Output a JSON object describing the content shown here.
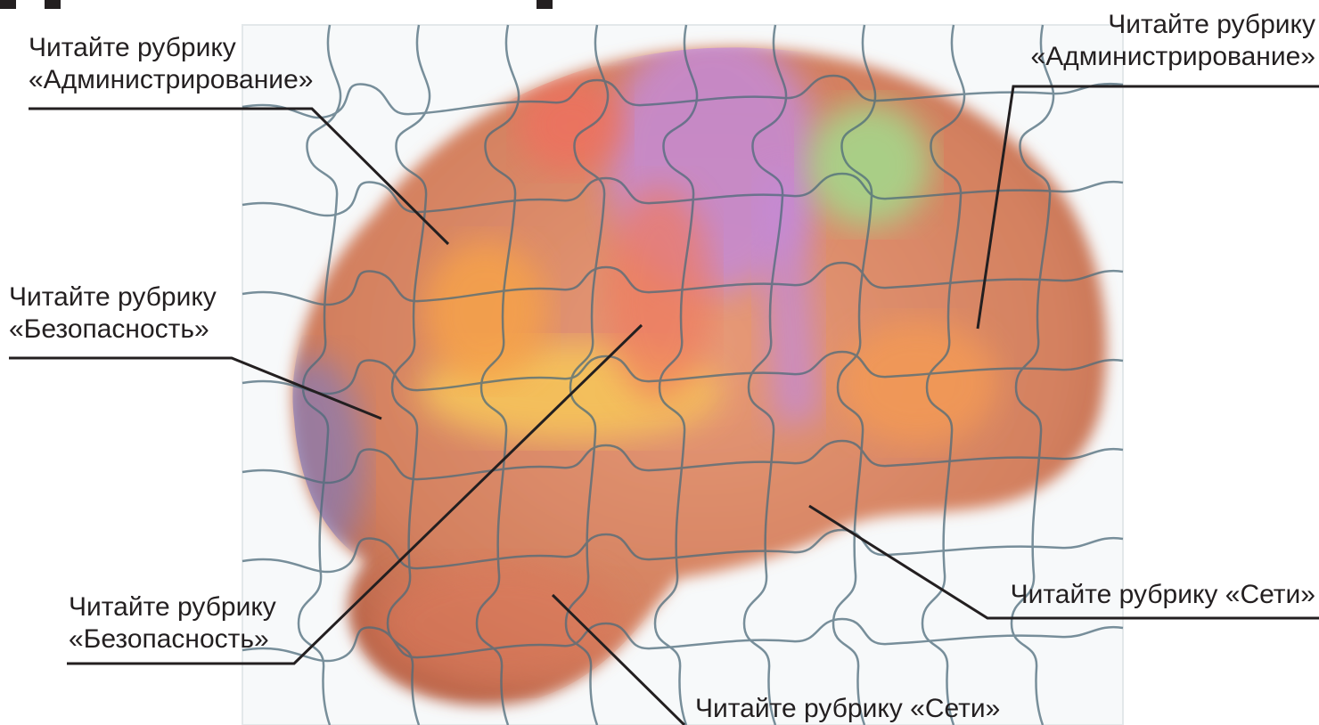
{
  "callouts": [
    {
      "line1": "Читайте рубрику",
      "line2": "«Администрирование»"
    },
    {
      "line1": "Читайте рубрику",
      "line2": "«Администрирование»"
    },
    {
      "line1": "Читайте рубрику",
      "line2": "«Безопасность»"
    },
    {
      "line1": "Читайте рубрику",
      "line2": "«Безопасность»"
    },
    {
      "line1": "Читайте рубрику «Сети»"
    },
    {
      "line1": "Читайте рубрику «Сети»"
    }
  ],
  "colors": {
    "text": "#231f20",
    "leader_line": "#231f20",
    "puzzle_outline": "#7a9aa8",
    "brain_base": "#d9896a",
    "region_purple": "#c48ad6",
    "region_green": "#a5d68a",
    "region_yellow": "#f6c45a",
    "region_orange": "#f39a55",
    "region_red": "#ef7a5e",
    "region_blue": "#8a7bb4"
  }
}
